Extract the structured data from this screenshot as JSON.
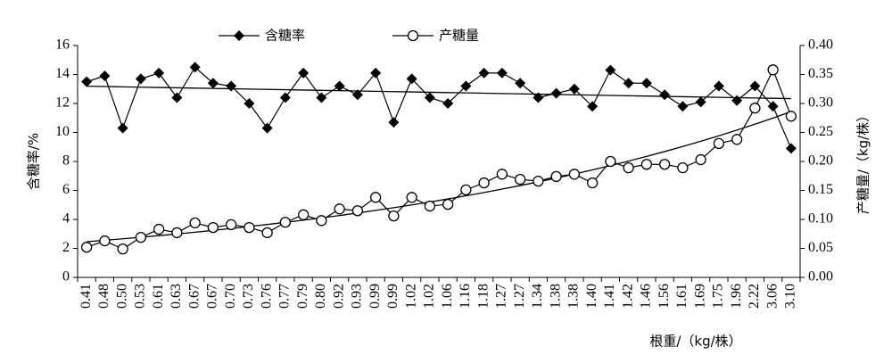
{
  "chart_data": {
    "type": "line",
    "categories": [
      "0.41",
      "0.48",
      "0.50",
      "0.53",
      "0.61",
      "0.63",
      "0.67",
      "0.67",
      "0.70",
      "0.73",
      "0.76",
      "0.77",
      "0.79",
      "0.80",
      "0.92",
      "0.93",
      "0.99",
      "0.99",
      "1.02",
      "1.02",
      "1.06",
      "1.16",
      "1.18",
      "1.27",
      "1.27",
      "1.34",
      "1.38",
      "1.38",
      "1.40",
      "1.41",
      "1.42",
      "1.46",
      "1.56",
      "1.61",
      "1.69",
      "1.75",
      "1.96",
      "2.22",
      "3.06",
      "3.10"
    ],
    "x_label": "根重/（kg/株）",
    "y_label": "含糖率/%",
    "y2_label": "产糖量/（kg/株）",
    "ylim": [
      0,
      16
    ],
    "yticks": [
      0,
      2,
      4,
      6,
      8,
      10,
      12,
      14,
      16
    ],
    "y2lim": [
      0,
      0.4
    ],
    "y2ticks": [
      {
        "value": 0,
        "label": "0.00"
      },
      0.05,
      {
        "value": 0.1,
        "label": "0.10"
      },
      0.15,
      {
        "value": 0.2,
        "label": "0.20"
      },
      0.25,
      {
        "value": 0.3,
        "label": "0.30"
      },
      0.35,
      {
        "value": 0.4,
        "label": "0.40"
      }
    ],
    "legend": "top",
    "series": [
      {
        "name": "含糖率",
        "color": "#000000",
        "marker": "diamond",
        "trendline": "linear",
        "values": [
          13.5,
          13.9,
          10.3,
          13.7,
          14.1,
          12.4,
          14.5,
          13.4,
          13.2,
          12.0,
          10.3,
          12.4,
          14.1,
          12.4,
          13.2,
          12.6,
          14.1,
          10.7,
          13.7,
          12.4,
          12.0,
          13.2,
          14.1,
          14.1,
          13.4,
          12.4,
          12.7,
          13.0,
          11.8,
          14.3,
          13.4,
          13.4,
          12.6,
          11.8,
          12.1,
          13.2,
          12.2,
          13.2,
          11.8,
          8.9
        ]
      },
      {
        "name": "产糖量",
        "color": "#000000",
        "marker": "circle",
        "trendline": "exponential",
        "axis": "y2",
        "values": [
          0.052,
          0.063,
          0.049,
          0.069,
          0.083,
          0.077,
          0.094,
          0.086,
          0.091,
          0.086,
          0.077,
          0.095,
          0.108,
          0.098,
          0.118,
          0.115,
          0.138,
          0.106,
          0.138,
          0.123,
          0.126,
          0.151,
          0.163,
          0.178,
          0.169,
          0.166,
          0.174,
          0.178,
          0.163,
          0.2,
          0.189,
          0.195,
          0.195,
          0.189,
          0.203,
          0.231,
          0.238,
          0.292,
          0.358,
          0.278
        ]
      }
    ]
  }
}
